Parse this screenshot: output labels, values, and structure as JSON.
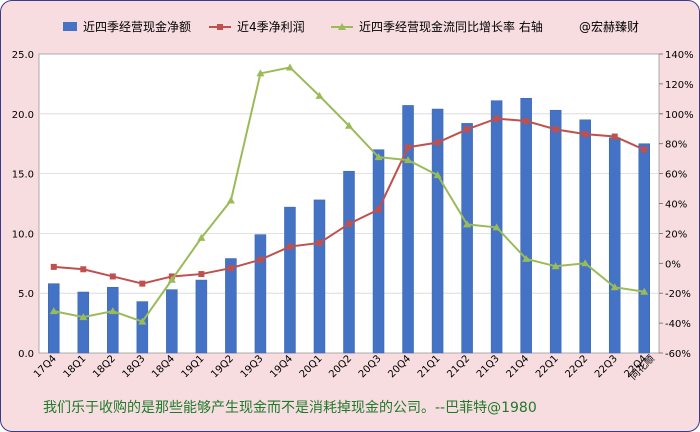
{
  "chart_data": {
    "type": "bar",
    "categories": [
      "17Q4",
      "18Q1",
      "18Q2",
      "18Q3",
      "18Q4",
      "19Q1",
      "19Q2",
      "19Q3",
      "19Q4",
      "20Q1",
      "20Q2",
      "20Q3",
      "20Q4",
      "21Q1",
      "21Q2",
      "21Q3",
      "21Q4",
      "22Q1",
      "22Q2",
      "22Q3",
      "22Q4"
    ],
    "series": [
      {
        "name": "近四季经营现金净额",
        "type": "bar",
        "axis": "left",
        "color": "#4472c4",
        "values": [
          5.8,
          5.1,
          5.5,
          4.3,
          5.3,
          6.1,
          7.9,
          9.9,
          12.2,
          12.8,
          15.2,
          17.0,
          20.7,
          20.4,
          19.2,
          21.1,
          21.3,
          20.3,
          19.5,
          18.0,
          17.5
        ]
      },
      {
        "name": "近4季净利润",
        "type": "line",
        "axis": "left",
        "color": "#c0504d",
        "values": [
          7.2,
          7.0,
          6.4,
          5.8,
          6.4,
          6.6,
          7.1,
          7.8,
          8.9,
          9.2,
          10.8,
          12.0,
          17.2,
          17.6,
          18.7,
          19.6,
          19.4,
          18.7,
          18.3,
          18.1,
          17.0
        ]
      },
      {
        "name": "近四季经营现金流同比增长率 右轴",
        "type": "line",
        "axis": "right",
        "color": "#9bbb59",
        "values": [
          -32,
          -36,
          -32,
          -39,
          -11,
          17,
          42,
          127,
          131,
          112,
          92,
          71,
          69,
          59,
          26,
          24,
          3,
          -2,
          0,
          -16,
          -19
        ]
      }
    ],
    "legend_extra": "@宏赫臻财",
    "y_left": {
      "min": 0,
      "max": 25,
      "step": 5,
      "ticks": [
        "0.0",
        "5.0",
        "10.0",
        "15.0",
        "20.0",
        "25.0"
      ]
    },
    "y_right": {
      "min": -60,
      "max": 140,
      "step": 20,
      "ticks": [
        "-60%",
        "-40%",
        "-20%",
        "0%",
        "20%",
        "40%",
        "60%",
        "80%",
        "100%",
        "120%",
        "140%"
      ]
    },
    "watermark": "同花顺",
    "quote": "我们乐于收购的是那些能够产生现金而不是消耗掉现金的公司。--巴菲特@1980",
    "legend_position": "top",
    "grid": true
  }
}
